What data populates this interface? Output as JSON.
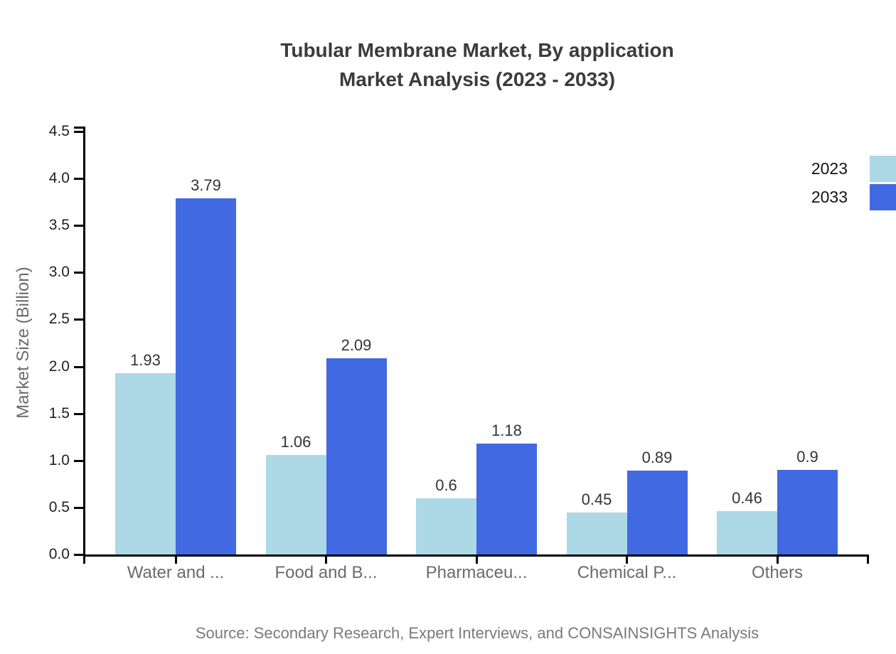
{
  "chart_data": {
    "type": "bar",
    "title": "Tubular Membrane Market, By application",
    "subtitle": "Market Analysis (2023 - 2033)",
    "ylabel": "Market Size (Billion)",
    "categories": [
      "Water and ...",
      "Food and B...",
      "Pharmaceu...",
      "Chemical P...",
      "Others"
    ],
    "series": [
      {
        "name": "2023",
        "color": "#ADD8E6",
        "values": [
          1.93,
          1.06,
          0.6,
          0.45,
          0.46
        ]
      },
      {
        "name": "2033",
        "color": "#4169E1",
        "values": [
          3.79,
          2.09,
          1.18,
          0.89,
          0.9
        ]
      }
    ],
    "ylim": [
      0,
      4.5
    ],
    "yticks": [
      "0.0",
      "0.5",
      "1.0",
      "1.5",
      "2.0",
      "2.5",
      "3.0",
      "3.5",
      "4.0",
      "4.5"
    ],
    "grid": false,
    "legend_position": "upper-right",
    "axis_color": "#000000"
  },
  "footer": {
    "source": "Source: Secondary Research, Expert Interviews, and CONSAINSIGHTS Analysis"
  }
}
